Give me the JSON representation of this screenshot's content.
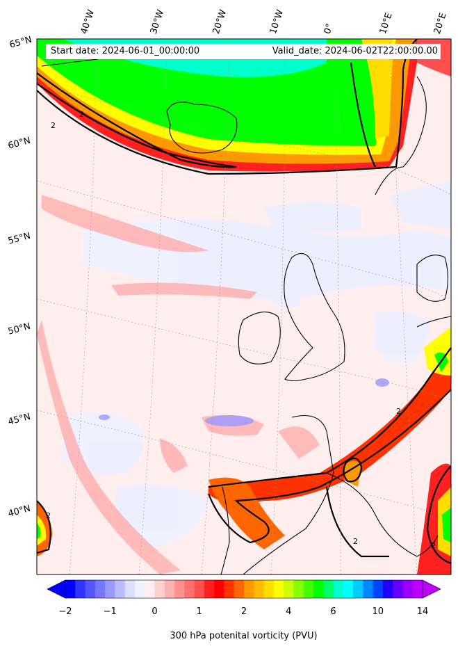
{
  "map": {
    "start_date": "Start date: 2024-06-01_00:00:00",
    "valid_date": "Valid_date: 2024-06-02T22:00:00.00",
    "lon_labels": [
      "40°W",
      "30°W",
      "20°W",
      "10°W",
      "0°",
      "10°E",
      "20°E"
    ],
    "lat_labels": [
      "65°N",
      "60°N",
      "55°N",
      "50°N",
      "45°N",
      "40°N"
    ],
    "contour_label": "2"
  },
  "colorbar": {
    "title": "300 hPa potenital vorticity (PVU)",
    "tick_labels": [
      "−2",
      "−1",
      "0",
      "1",
      "2",
      "4",
      "6",
      "10",
      "14"
    ],
    "colors": [
      "#0000ff",
      "#3333ff",
      "#5555ff",
      "#7777ff",
      "#9999ff",
      "#bbbbff",
      "#ddddff",
      "#f0f0ff",
      "#ffeeee",
      "#ffd0d0",
      "#ffb0b0",
      "#ff9090",
      "#ff7070",
      "#ff5050",
      "#ff2020",
      "#ff0000",
      "#ff3300",
      "#ff6600",
      "#ff9900",
      "#ffbb00",
      "#ffdd00",
      "#ffff00",
      "#ccff00",
      "#88ff00",
      "#44ff00",
      "#00ff00",
      "#00ff66",
      "#00ffcc",
      "#00ffff",
      "#00ccff",
      "#0088ff",
      "#0044ff",
      "#2200ff",
      "#6600ff",
      "#9900ff",
      "#bb00ff"
    ],
    "under_color": "#0000ff",
    "over_color": "#bb00ff"
  }
}
